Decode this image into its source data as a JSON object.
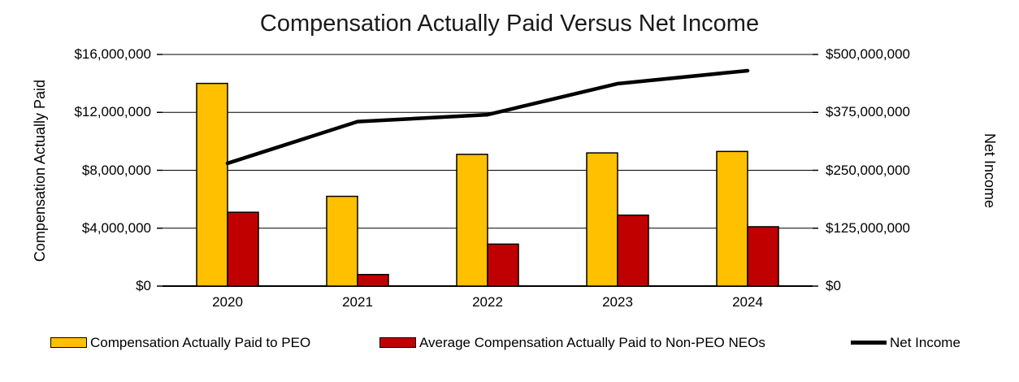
{
  "title": "Compensation Actually Paid Versus Net Income",
  "chart_data": {
    "type": "combo",
    "title": "Compensation Actually Paid Versus Net Income",
    "categories": [
      "2020",
      "2021",
      "2022",
      "2023",
      "2024"
    ],
    "series": [
      {
        "name": "Compensation Actually Paid to PEO",
        "type": "bar",
        "axis": "left",
        "color": "#FFC000",
        "values": [
          14000000,
          6200000,
          9100000,
          9200000,
          9300000
        ]
      },
      {
        "name": "Average Compensation Actually Paid to Non-PEO NEOs",
        "type": "bar",
        "axis": "left",
        "color": "#C00000",
        "values": [
          5100000,
          800000,
          2900000,
          4900000,
          4100000
        ]
      },
      {
        "name": "Net Income",
        "type": "line",
        "axis": "right",
        "color": "#000000",
        "values": [
          265000000,
          355000000,
          370000000,
          437000000,
          465000000
        ]
      }
    ],
    "left_axis": {
      "title": "Compensation Actually Paid",
      "min": 0,
      "max": 16000000,
      "ticks": [
        "$16,000,000",
        "$12,000,000",
        "$8,000,000",
        "$4,000,000",
        "$0"
      ]
    },
    "right_axis": {
      "title": "Net Income",
      "min": 0,
      "max": 500000000,
      "ticks": [
        "$500,000,000",
        "$375,000,000",
        "$250,000,000",
        "$125,000,000",
        "$0"
      ]
    },
    "grid": true,
    "legend_position": "bottom",
    "colors": {
      "peo_bar": "#FFC000",
      "non_peo_bar": "#C00000",
      "net_income_line": "#000000",
      "background": "#FFFFFF",
      "gridline": "#000000"
    }
  }
}
